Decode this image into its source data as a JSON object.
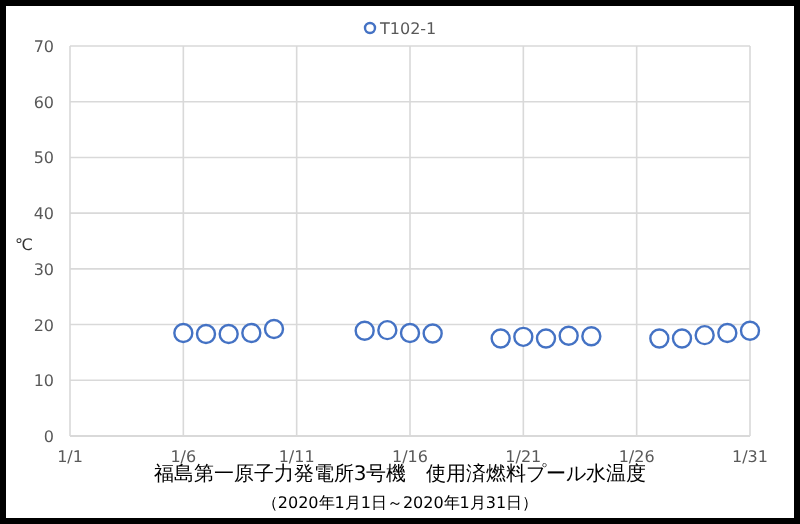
{
  "chart_data": {
    "type": "scatter",
    "title": "福島第一原子力発電所3号機　使用済燃料プール水温度",
    "subtitle": "（2020年1月1日～2020年1月31日）",
    "ylabel": "℃",
    "x": [
      "2020-01-06",
      "2020-01-07",
      "2020-01-08",
      "2020-01-09",
      "2020-01-10",
      "2020-01-14",
      "2020-01-15",
      "2020-01-16",
      "2020-01-17",
      "2020-01-20",
      "2020-01-21",
      "2020-01-22",
      "2020-01-23",
      "2020-01-24",
      "2020-01-27",
      "2020-01-28",
      "2020-01-29",
      "2020-01-30",
      "2020-01-31"
    ],
    "series": [
      {
        "name": "T102-1",
        "color": "#4472c4",
        "values": [
          18.5,
          18.3,
          18.3,
          18.5,
          19.2,
          18.9,
          19.0,
          18.5,
          18.4,
          17.5,
          17.8,
          17.5,
          18.0,
          17.9,
          17.5,
          17.5,
          18.1,
          18.5,
          18.9
        ]
      }
    ],
    "xlim": [
      "2020-01-01",
      "2020-01-31"
    ],
    "xticks": [
      {
        "value": "2020-01-01",
        "label": "1/1"
      },
      {
        "value": "2020-01-06",
        "label": "1/6"
      },
      {
        "value": "2020-01-11",
        "label": "1/11"
      },
      {
        "value": "2020-01-16",
        "label": "1/16"
      },
      {
        "value": "2020-01-21",
        "label": "1/21"
      },
      {
        "value": "2020-01-26",
        "label": "1/26"
      },
      {
        "value": "2020-01-31",
        "label": "1/31"
      }
    ],
    "ylim": [
      0,
      70
    ],
    "yticks": [
      0,
      10,
      20,
      30,
      40,
      50,
      60,
      70
    ],
    "grid": true,
    "legend": "top",
    "marker": "circle"
  }
}
